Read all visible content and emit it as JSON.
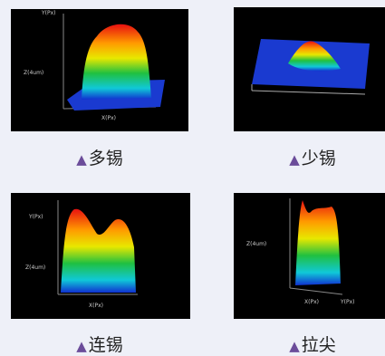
{
  "panels": [
    {
      "caption": {
        "marker": "▲",
        "text": "多锡"
      },
      "axes": {
        "y": "Y(Px)",
        "z": "Z(4um)",
        "x": "X(Px)"
      }
    },
    {
      "caption": {
        "marker": "▲",
        "text": "少锡"
      }
    },
    {
      "caption": {
        "marker": "▲",
        "text": "连锡"
      },
      "axes": {
        "y": "Y(Px)",
        "z": "Z(4um)",
        "x": "X(Px)"
      }
    },
    {
      "caption": {
        "marker": "▲",
        "text": "拉尖"
      },
      "axes": {
        "z": "Z(4um)",
        "x": "X(Px)",
        "y": "Y(Px)"
      }
    }
  ]
}
